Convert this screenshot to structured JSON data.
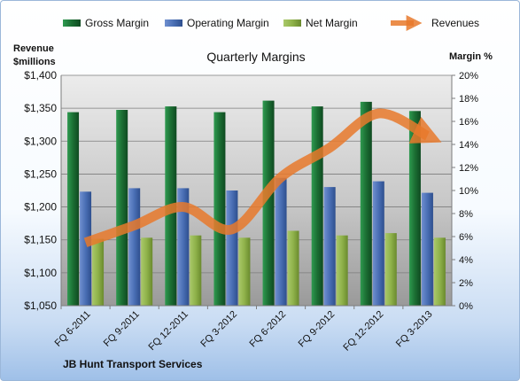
{
  "chart_data": {
    "type": "bar",
    "title": "Quarterly Margins",
    "company": "JB Hunt Transport Services",
    "left_axis": {
      "label_line1": "Revenue",
      "label_line2": "$millions",
      "range": [
        1050,
        1400
      ],
      "ticks": [
        "$1,050",
        "$1,100",
        "$1,150",
        "$1,200",
        "$1,250",
        "$1,300",
        "$1,350",
        "$1,400"
      ]
    },
    "right_axis": {
      "label": "Margin %",
      "range": [
        0,
        20
      ],
      "ticks": [
        "0%",
        "2%",
        "4%",
        "6%",
        "8%",
        "10%",
        "12%",
        "14%",
        "16%",
        "18%",
        "20%"
      ]
    },
    "categories": [
      "FQ 6-2011",
      "FQ 9-2011",
      "FQ 12-2011",
      "FQ 3-2012",
      "FQ 6-2012",
      "FQ 9-2012",
      "FQ 12-2012",
      "FQ 3-2013"
    ],
    "series": [
      {
        "name": "Gross Margin",
        "axis": "right",
        "color": "#1f7a3a",
        "values": [
          16.8,
          17.0,
          17.3,
          16.8,
          17.8,
          17.3,
          17.7,
          16.9
        ]
      },
      {
        "name": "Operating Margin",
        "axis": "right",
        "color": "#4a6fb5",
        "values": [
          9.9,
          10.2,
          10.2,
          10.0,
          11.1,
          10.3,
          10.8,
          9.8
        ]
      },
      {
        "name": "Net Margin",
        "axis": "right",
        "color": "#8fb24a",
        "values": [
          5.8,
          5.9,
          6.1,
          5.9,
          6.5,
          6.1,
          6.3,
          5.9
        ]
      },
      {
        "name": "Revenues",
        "axis": "left",
        "color": "#e8792b",
        "type": "line",
        "values": [
          1146,
          1172,
          1200,
          1166,
          1245,
          1290,
          1342,
          1308
        ]
      }
    ],
    "grid": true,
    "legend_position": "top"
  }
}
